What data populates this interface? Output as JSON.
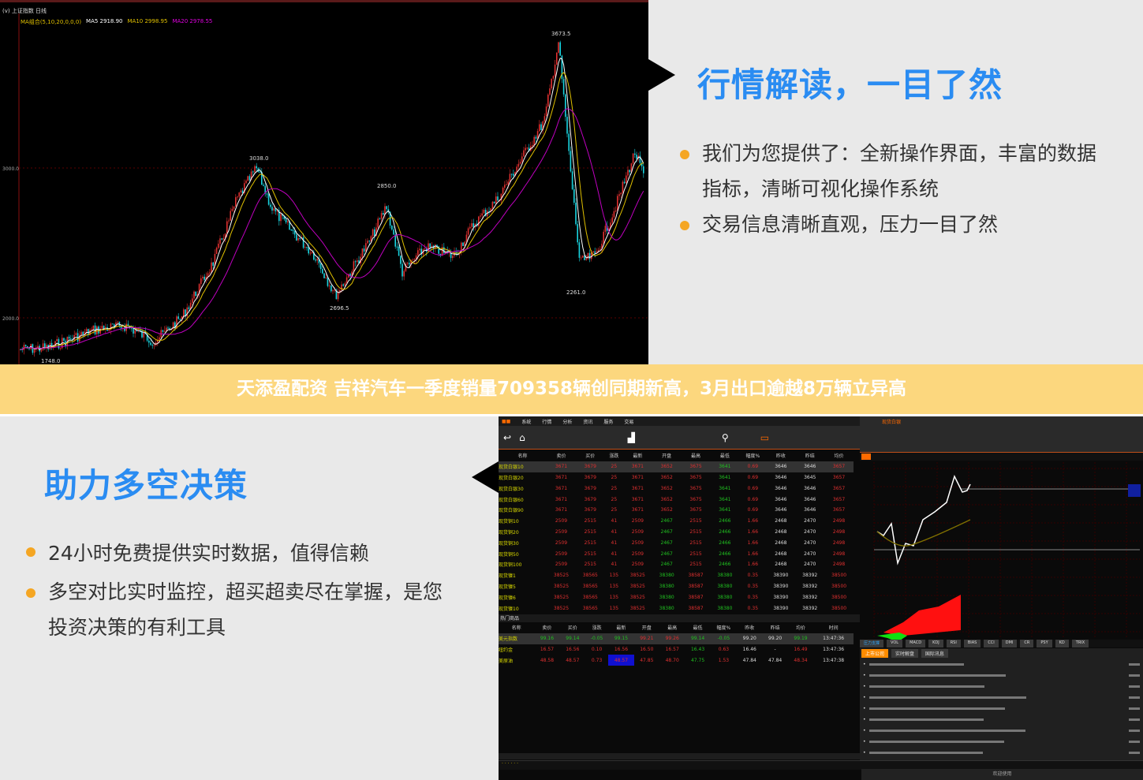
{
  "top_chart": {
    "header": "(v) 上证指数 日线",
    "indicator": "MA组合(5,10,20,0,0,0)",
    "ma5": "MA5 2918.90",
    "ma10": "MA10 2998.95",
    "ma20": "MA20 2978.55",
    "y_labels": [
      "3000.0",
      "2000.0"
    ],
    "annotations": {
      "high": "3673.5",
      "peak1": "3038.0",
      "peak2": "2850.0",
      "low1": "2696.5",
      "low2": "2261.0",
      "start": "1748.0"
    },
    "colors": {
      "up": "#e03030",
      "down": "#19d4e0",
      "ma5": "#ffffff",
      "ma10": "#e0c000",
      "ma20": "#c000c0"
    }
  },
  "section1": {
    "title": "行情解读，一目了然",
    "bullets": [
      "我们为您提供了：全新操作界面，丰富的数据",
      "指标，清晰可视化操作系统",
      "交易信息清晰直观，压力一目了然"
    ]
  },
  "banner": "天添盈配资 吉祥汽车一季度销量709358辆创同期新高，3月出口逾越8万辆立异高",
  "section2": {
    "title": "助力多空决策",
    "bullets": [
      "24小时免费提供实时数据，值得信赖",
      "多空对比实时监控，超买超卖尽在掌握，是您",
      "投资决策的有利工具"
    ]
  },
  "app": {
    "menu": [
      "系统",
      "行情",
      "分析",
      "资讯",
      "服务",
      "交易"
    ],
    "columns": [
      "名称",
      "卖价",
      "买价",
      "涨跌",
      "最新",
      "开盘",
      "最高",
      "最低",
      "幅度%",
      "昨收",
      "昨结",
      "均价"
    ],
    "rows": [
      [
        "现货白银10",
        "3671",
        "3679",
        "25",
        "3671",
        "3652",
        "3675",
        "3641",
        "0.69",
        "3646",
        "3646",
        "3657"
      ],
      [
        "现货白银20",
        "3671",
        "3679",
        "25",
        "3671",
        "3652",
        "3675",
        "3641",
        "0.69",
        "3646",
        "3645",
        "3657"
      ],
      [
        "现货白银30",
        "3671",
        "3679",
        "25",
        "3671",
        "3652",
        "3675",
        "3641",
        "0.69",
        "3646",
        "3646",
        "3657"
      ],
      [
        "现货白银60",
        "3671",
        "3679",
        "25",
        "3671",
        "3652",
        "3675",
        "3641",
        "0.69",
        "3646",
        "3646",
        "3657"
      ],
      [
        "现货白银90",
        "3671",
        "3679",
        "25",
        "3671",
        "3652",
        "3675",
        "3641",
        "0.69",
        "3646",
        "3646",
        "3657"
      ],
      [
        "现货铜10",
        "2509",
        "2515",
        "41",
        "2509",
        "2467",
        "2515",
        "2466",
        "1.66",
        "2468",
        "2470",
        "2498"
      ],
      [
        "现货铜20",
        "2509",
        "2515",
        "41",
        "2509",
        "2467",
        "2515",
        "2466",
        "1.66",
        "2468",
        "2470",
        "2498"
      ],
      [
        "现货铜30",
        "2509",
        "2515",
        "41",
        "2509",
        "2467",
        "2515",
        "2466",
        "1.66",
        "2468",
        "2470",
        "2498"
      ],
      [
        "现货铜50",
        "2509",
        "2515",
        "41",
        "2509",
        "2467",
        "2515",
        "2466",
        "1.66",
        "2468",
        "2470",
        "2498"
      ],
      [
        "现货铜100",
        "2509",
        "2515",
        "41",
        "2509",
        "2467",
        "2515",
        "2466",
        "1.66",
        "2468",
        "2470",
        "2498"
      ],
      [
        "现货镍1",
        "38525",
        "38565",
        "135",
        "38525",
        "38380",
        "38587",
        "38380",
        "0.35",
        "38390",
        "38392",
        "38500"
      ],
      [
        "现货镍5",
        "38525",
        "38565",
        "135",
        "38525",
        "38380",
        "38587",
        "38380",
        "0.35",
        "38390",
        "38392",
        "38500"
      ],
      [
        "现货镍6",
        "38525",
        "38565",
        "135",
        "38525",
        "38380",
        "38587",
        "38380",
        "0.35",
        "38390",
        "38392",
        "38500"
      ],
      [
        "现货镍10",
        "38525",
        "38565",
        "135",
        "38525",
        "38380",
        "38587",
        "38380",
        "0.35",
        "38390",
        "38392",
        "38500"
      ]
    ],
    "hot_label": "热门商品",
    "hot_columns": [
      "名称",
      "卖价",
      "买价",
      "涨跌",
      "最新",
      "开盘",
      "最高",
      "最低",
      "幅度%",
      "昨收",
      "昨结",
      "均价",
      "时间"
    ],
    "hot_rows": [
      [
        "美元指数",
        "99.16",
        "99.14",
        "-0.05",
        "99.15",
        "99.21",
        "99.26",
        "99.14",
        "-0.05",
        "99.20",
        "99.20",
        "99.19",
        "13:47:36"
      ],
      [
        "纽约金",
        "16.57",
        "16.56",
        "0.10",
        "16.56",
        "16.50",
        "16.57",
        "16.43",
        "0.63",
        "16.46",
        "-",
        "16.49",
        "13:47:36"
      ],
      [
        "美原油",
        "48.58",
        "48.57",
        "0.73",
        "48.57",
        "47.85",
        "48.70",
        "47.75",
        "1.53",
        "47.84",
        "47.84",
        "48.34",
        "13:47:38"
      ]
    ],
    "chart_title": "现货白银",
    "indicator_tabs": [
      "压力支撑",
      "VOL",
      "MACD",
      "KDJ",
      "RSI",
      "BIAS",
      "CCI",
      "DMI",
      "CR",
      "PSY",
      "KD",
      "TRIX"
    ],
    "news_tabs": [
      "上市公司",
      "实时解盘",
      "国际讯息"
    ],
    "status": "欢迎使用",
    "colors": {
      "accent": "#ff6a00",
      "up": "#e03030",
      "down": "#20c020"
    }
  }
}
